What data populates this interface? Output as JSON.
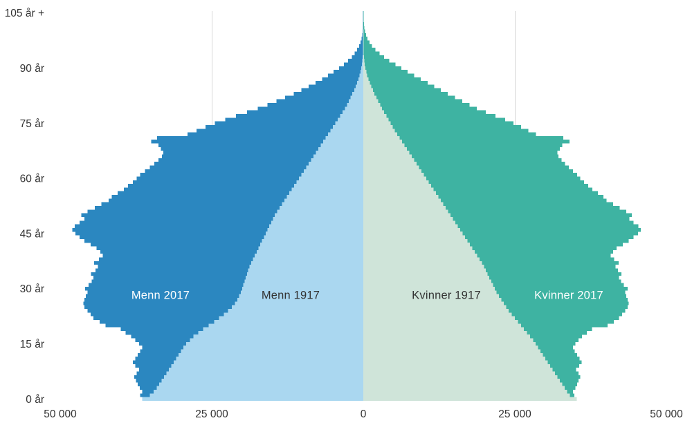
{
  "chart_data": {
    "type": "bar",
    "subtype": "population-pyramid",
    "title": "",
    "unit": "persons",
    "background": "#ffffff",
    "text_color": "#333333",
    "age_axis": {
      "min_age": 0,
      "max_age": 105,
      "tick_labels": [
        "0 år",
        "15 år",
        "30 år",
        "45 år",
        "60 år",
        "75 år",
        "90 år",
        "105 år +"
      ],
      "tick_ages": [
        0,
        15,
        30,
        45,
        60,
        75,
        90,
        105
      ]
    },
    "value_axis": {
      "ticks": [
        -50000,
        -25000,
        0,
        25000,
        50000
      ],
      "tick_labels": [
        "50 000",
        "25 000",
        "0",
        "25 000",
        "50 000"
      ],
      "max": 50000,
      "gridlines": [
        -25000,
        25000
      ],
      "gridline_color": "#d6d6d6"
    },
    "series": [
      {
        "name": "Menn 2017",
        "side": "left",
        "layer": "back",
        "color": "#2b87c0",
        "label_color": "#ffffff",
        "values": [
          36200,
          36800,
          36500,
          36900,
          37200,
          37500,
          37800,
          37400,
          37000,
          37600,
          38000,
          37600,
          37200,
          36800,
          36500,
          37000,
          37600,
          38300,
          39200,
          40000,
          42500,
          43500,
          44500,
          45000,
          45500,
          46000,
          46200,
          46000,
          45800,
          45500,
          45900,
          45300,
          44800,
          44500,
          44900,
          44200,
          43800,
          44400,
          43600,
          43000,
          43400,
          44000,
          45000,
          46000,
          46800,
          47500,
          48000,
          47600,
          46800,
          46000,
          46500,
          45500,
          44300,
          43200,
          42000,
          41500,
          40500,
          39500,
          38800,
          38000,
          37400,
          36800,
          36000,
          35200,
          34500,
          33800,
          33200,
          33000,
          33400,
          33800,
          35000,
          34000,
          29000,
          27500,
          26000,
          24500,
          22800,
          21000,
          19200,
          17400,
          15800,
          14300,
          12900,
          11500,
          10200,
          9000,
          7900,
          6800,
          5800,
          4900,
          4000,
          3200,
          2500,
          1900,
          1400,
          1000,
          700,
          450,
          300,
          180,
          110,
          60,
          35,
          20,
          10,
          15
        ]
      },
      {
        "name": "Menn 1917",
        "side": "left",
        "layer": "front",
        "color": "#aad7f0",
        "label_color": "#333333",
        "values": [
          36500,
          35200,
          34600,
          34100,
          33700,
          33300,
          32900,
          32500,
          32100,
          31700,
          31300,
          30900,
          30500,
          30100,
          29700,
          29200,
          28600,
          28000,
          27200,
          26400,
          25500,
          24600,
          23800,
          23000,
          22300,
          21700,
          21200,
          20800,
          20500,
          20200,
          20000,
          19800,
          19600,
          19400,
          19200,
          19000,
          18800,
          18500,
          18200,
          17900,
          17600,
          17300,
          17000,
          16700,
          16400,
          16100,
          15800,
          15500,
          15200,
          14900,
          14600,
          14200,
          13800,
          13400,
          13000,
          12600,
          12200,
          11800,
          11400,
          11000,
          10600,
          10200,
          9800,
          9400,
          9000,
          8600,
          8200,
          7800,
          7400,
          7000,
          6600,
          6200,
          5800,
          5400,
          5000,
          4600,
          4200,
          3800,
          3400,
          3000,
          2700,
          2400,
          2100,
          1800,
          1500,
          1250,
          1000,
          800,
          620,
          460,
          330,
          220,
          150,
          90,
          50,
          30,
          15,
          8,
          4,
          2,
          1,
          0,
          0,
          0,
          0,
          0
        ]
      },
      {
        "name": "Kvinner 1917",
        "side": "right",
        "layer": "front",
        "color": "#cfe4d9",
        "label_color": "#333333",
        "values": [
          35200,
          34100,
          33600,
          33200,
          32800,
          32400,
          32000,
          31600,
          31200,
          30800,
          30400,
          30000,
          29600,
          29200,
          28800,
          28400,
          28000,
          27500,
          27000,
          26500,
          26000,
          25500,
          25000,
          24500,
          24000,
          23600,
          23200,
          22800,
          22400,
          22000,
          21700,
          21400,
          21100,
          20800,
          20500,
          20200,
          19900,
          19600,
          19200,
          18800,
          18400,
          18000,
          17600,
          17200,
          16800,
          16400,
          16000,
          15600,
          15200,
          14800,
          14400,
          14000,
          13600,
          13200,
          12800,
          12400,
          12000,
          11600,
          11200,
          10800,
          10400,
          10000,
          9600,
          9200,
          8800,
          8400,
          8000,
          7600,
          7200,
          6800,
          6400,
          6000,
          5600,
          5200,
          4850,
          4500,
          4150,
          3800,
          3450,
          3100,
          2780,
          2460,
          2150,
          1850,
          1570,
          1300,
          1060,
          840,
          650,
          490,
          360,
          250,
          170,
          110,
          70,
          40,
          24,
          13,
          7,
          3,
          2,
          0,
          0,
          0,
          0,
          0
        ]
      },
      {
        "name": "Kvinner 2017",
        "side": "right",
        "layer": "back",
        "color": "#3eb3a2",
        "label_color": "#ffffff",
        "values": [
          34300,
          34800,
          34600,
          35000,
          35300,
          35500,
          35800,
          35500,
          35100,
          35600,
          36000,
          35700,
          35300,
          34900,
          34600,
          35000,
          35500,
          36100,
          36900,
          37700,
          40300,
          41300,
          42200,
          42700,
          43200,
          43600,
          43800,
          43600,
          43400,
          43200,
          43600,
          43000,
          42500,
          42200,
          42600,
          42000,
          41600,
          42100,
          41400,
          40800,
          41200,
          41800,
          42800,
          43800,
          44600,
          45300,
          45800,
          45400,
          44600,
          43900,
          44300,
          43400,
          42300,
          41200,
          40100,
          39600,
          38700,
          37800,
          37100,
          36400,
          35800,
          35300,
          34600,
          33900,
          33300,
          32700,
          32200,
          32000,
          32400,
          32800,
          34000,
          33000,
          28500,
          27200,
          26000,
          24800,
          23400,
          21800,
          20200,
          18700,
          17500,
          16300,
          15100,
          13900,
          12800,
          11700,
          10600,
          9500,
          8400,
          7300,
          6300,
          5300,
          4300,
          3400,
          2700,
          2000,
          1450,
          1000,
          680,
          440,
          270,
          160,
          90,
          50,
          30,
          40
        ]
      }
    ]
  }
}
